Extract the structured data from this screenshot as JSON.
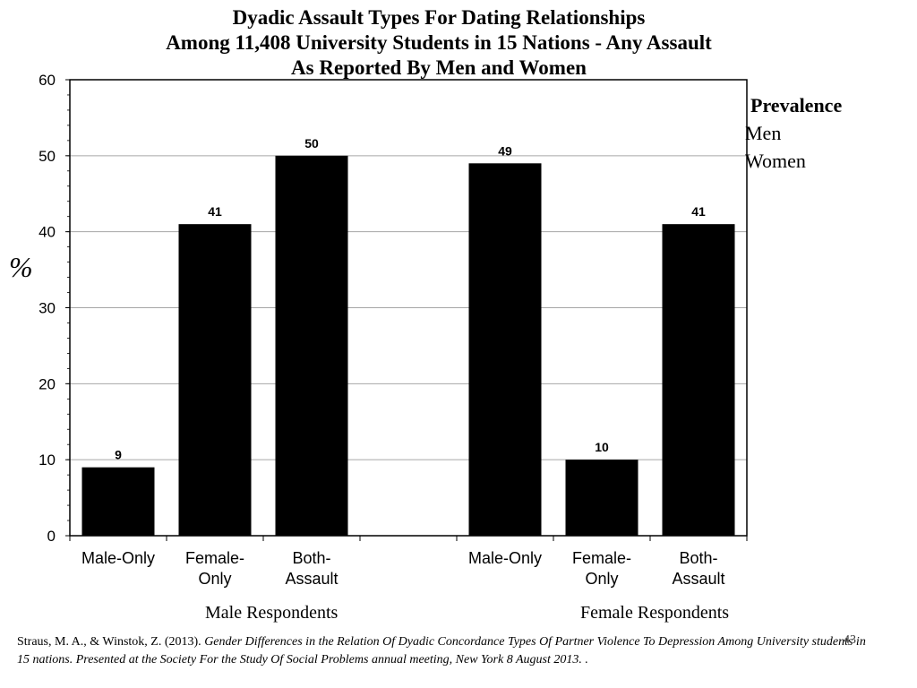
{
  "title": {
    "line1": "Dyadic Assault Types For Dating Relationships",
    "line2": "Among 11,408 University Students in 15 Nations - Any Assault",
    "line3": "As Reported By Men and Women"
  },
  "y_symbol": "%",
  "legend": {
    "title": "Prevalence",
    "items": [
      "Men",
      "Women"
    ]
  },
  "groups": [
    "Male Respondents",
    "Female Respondents"
  ],
  "footer": {
    "citation_plain": "Straus, M. A., & Winstok, Z. (2013). ",
    "citation_italic": "Gender Differences in the Relation Of Dyadic Concordance Types Of Partner Violence To Depression Among University students in 15 nations.  Presented at  the Society For the Study Of Social Problems annual meeting, New York 8 August 2013.  .",
    "page_number": "43"
  },
  "colors": {
    "bar": "#000000",
    "grid": "#a6a6a6",
    "axis": "#000000"
  },
  "chart_data": {
    "type": "bar",
    "categories": [
      [
        "Male-Only"
      ],
      [
        "Female-",
        "Only"
      ],
      [
        "Both-",
        "Assault"
      ],
      [],
      [
        "Male-Only"
      ],
      [
        "Female-",
        "Only"
      ],
      [
        "Both-",
        "Assault"
      ]
    ],
    "values": [
      9,
      41,
      50,
      null,
      49,
      10,
      41
    ],
    "data_labels": [
      "9",
      "41",
      "50",
      "",
      "49",
      "10",
      "41"
    ],
    "ylim": [
      0,
      60
    ],
    "yticks": [
      0,
      10,
      20,
      30,
      40,
      50,
      60
    ],
    "grid": true
  }
}
